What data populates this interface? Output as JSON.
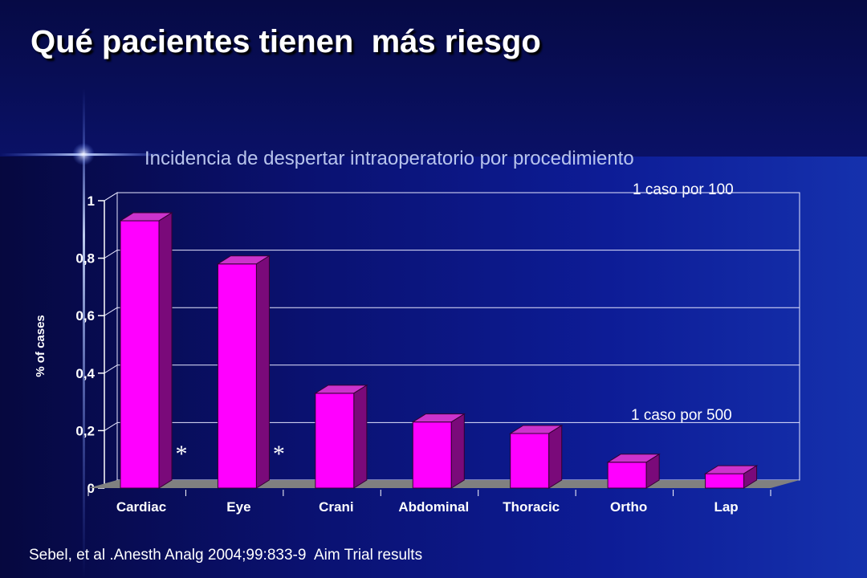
{
  "slide": {
    "title": "Qué pacientes tienen  más riesgo",
    "subtitle": "Incidencia de despertar intraoperatorio por procedimiento",
    "note_high": "1 caso por 100",
    "note_low": "1 caso por 500",
    "source": "Sebel, et al .Anesth Analg 2004;99:833-9  Aim Trial results"
  },
  "chart_data": {
    "type": "bar",
    "categories": [
      "Cardiac",
      "Eye",
      "Crani",
      "Abdominal",
      "Thoracic",
      "Ortho",
      "Lap"
    ],
    "values": [
      0.93,
      0.78,
      0.33,
      0.23,
      0.19,
      0.09,
      0.05
    ],
    "ylabel": "% of cases",
    "ylim": [
      0,
      1
    ],
    "yticks": [
      0,
      0.2,
      0.4,
      0.6,
      0.8,
      1
    ],
    "ytick_labels": [
      "0",
      "0,2",
      "0,4",
      "0,6",
      "0,8",
      "1"
    ],
    "annotations": [
      {
        "text": "*",
        "category": "Cardiac"
      },
      {
        "text": "*",
        "category": "Eye"
      }
    ],
    "grid": true,
    "colors": {
      "bar_front": "#ff00ff",
      "bar_top": "#cc33cc",
      "bar_side": "#7a0a7a",
      "floor": "#808080",
      "gridline": "#e6e6ff"
    }
  }
}
